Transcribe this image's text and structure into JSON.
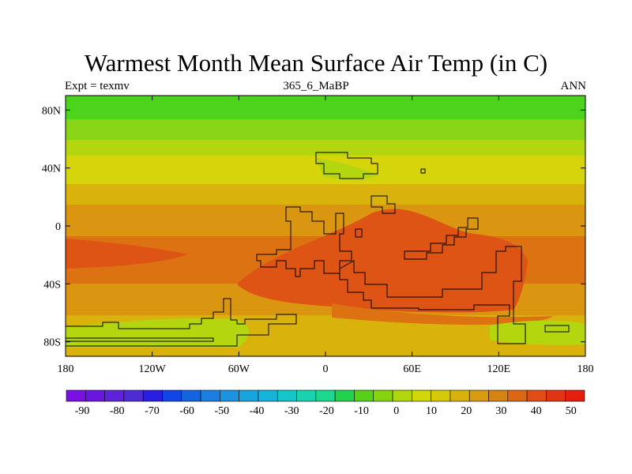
{
  "title": "Warmest Month Mean Surface Air Temp (in C)",
  "left_label": "Expt = texmv",
  "center_label": "365_6_MaBP",
  "right_label": "ANN",
  "longitude_labels": [
    "180",
    "120W",
    "60W",
    "0",
    "60E",
    "120E",
    "180"
  ],
  "latitude_labels": [
    "80N",
    "40N",
    "0",
    "40S",
    "80S"
  ],
  "colorbar": {
    "tick_labels": [
      "-90",
      "-80",
      "-70",
      "-60",
      "-50",
      "-40",
      "-30",
      "-20",
      "-10",
      "0",
      "10",
      "20",
      "30",
      "40",
      "50"
    ],
    "colors": [
      "#7a10e2",
      "#6a16e0",
      "#5f22dc",
      "#4f2bd6",
      "#2a1ee0",
      "#1245e6",
      "#1663e0",
      "#1a7ee2",
      "#1c93e0",
      "#17a5e0",
      "#14b5d8",
      "#14c6c8",
      "#18d2b0",
      "#1ad88c",
      "#20d24e",
      "#58d018",
      "#86d410",
      "#b2d60e",
      "#d0d80a",
      "#d6c80a",
      "#d8b20c",
      "#d89c10",
      "#d88212",
      "#dc6614",
      "#e04c14",
      "#e03414",
      "#e21e0e"
    ]
  },
  "fill_colors": {
    "green": "#4cd31c",
    "light_green": "#88d416",
    "yellow_green": "#b4d60e",
    "yellow": "#d6d40a",
    "gold": "#d9b20c",
    "orange": "#da9610",
    "dark_orange": "#dc7212",
    "red_orange": "#de5414",
    "coastline": "#000000"
  }
}
